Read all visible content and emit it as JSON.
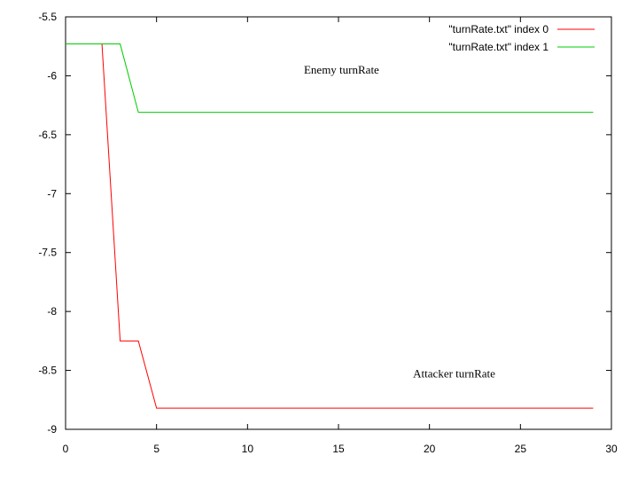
{
  "chart_data": {
    "type": "line",
    "title": "",
    "xlabel": "",
    "ylabel": "",
    "xlim": [
      0,
      30
    ],
    "ylim": [
      -9,
      -5.5
    ],
    "x_ticks": [
      "0",
      "5",
      "10",
      "15",
      "20",
      "25",
      "30"
    ],
    "y_ticks": [
      "-5.5",
      "-6",
      "-6.5",
      "-7",
      "-7.5",
      "-8",
      "-8.5",
      "-9"
    ],
    "grid": false,
    "legend_position": "top-right",
    "series": [
      {
        "name": "\"turnRate.txt\" index 0",
        "color": "#ff0000",
        "x": [
          0,
          1,
          2,
          3,
          4,
          5,
          6,
          7,
          8,
          9,
          10,
          11,
          12,
          13,
          14,
          15,
          16,
          17,
          18,
          19,
          20,
          21,
          22,
          23,
          24,
          25,
          26,
          27,
          28,
          29
        ],
        "y": [
          -5.73,
          -5.73,
          -5.73,
          -8.25,
          -8.25,
          -8.82,
          -8.82,
          -8.82,
          -8.82,
          -8.82,
          -8.82,
          -8.82,
          -8.82,
          -8.82,
          -8.82,
          -8.82,
          -8.82,
          -8.82,
          -8.82,
          -8.82,
          -8.82,
          -8.82,
          -8.82,
          -8.82,
          -8.82,
          -8.82,
          -8.82,
          -8.82,
          -8.82,
          -8.82
        ]
      },
      {
        "name": "\"turnRate.txt\" index 1",
        "color": "#00cc00",
        "x": [
          0,
          1,
          2,
          3,
          4,
          5,
          6,
          7,
          8,
          9,
          10,
          11,
          12,
          13,
          14,
          15,
          16,
          17,
          18,
          19,
          20,
          21,
          22,
          23,
          24,
          25,
          26,
          27,
          28,
          29
        ],
        "y": [
          -5.73,
          -5.73,
          -5.73,
          -5.73,
          -6.31,
          -6.31,
          -6.31,
          -6.31,
          -6.31,
          -6.31,
          -6.31,
          -6.31,
          -6.31,
          -6.31,
          -6.31,
          -6.31,
          -6.31,
          -6.31,
          -6.31,
          -6.31,
          -6.31,
          -6.31,
          -6.31,
          -6.31,
          -6.31,
          -6.31,
          -6.31,
          -6.31,
          -6.31,
          -6.31
        ]
      }
    ],
    "annotations": [
      {
        "text": "Enemy turnRate",
        "x": 13.1,
        "y": -5.98
      },
      {
        "text": "Attacker turnRate",
        "x": 19.1,
        "y": -8.56
      }
    ]
  }
}
